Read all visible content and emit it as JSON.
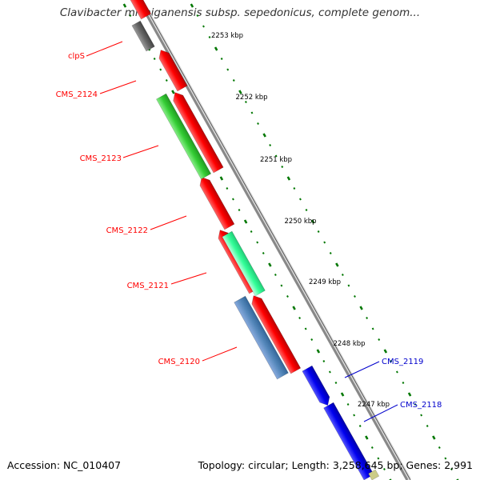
{
  "title": "Clavibacter michiganensis subsp. sepedonicus, complete genom...",
  "footer": {
    "accession": "Accession: NC_010407",
    "summary": "Topology: circular; Length: 3,258,645 bp; Genes: 2,991"
  },
  "ticks": [
    "2253 kbp",
    "2252 kbp",
    "2251 kbp",
    "2250 kbp",
    "2249 kbp",
    "2248 kbp",
    "2247 kbp"
  ],
  "genes_left": [
    {
      "name": "clpS"
    },
    {
      "name": "CMS_2124"
    },
    {
      "name": "CMS_2123"
    },
    {
      "name": "CMS_2122"
    },
    {
      "name": "CMS_2121"
    },
    {
      "name": "CMS_2120"
    }
  ],
  "genes_right": [
    {
      "name": "CMS_2119"
    },
    {
      "name": "CMS_2118"
    }
  ],
  "colors": {
    "left_label": "#ff0000",
    "right_label": "#0000cc",
    "reverse_gene": "#ff0000",
    "cds_green": "#33cc33",
    "cds_mint": "#33ff99",
    "cds_steel": "#5588bb",
    "cds_grey": "#666666",
    "forward_gene": "#0000ee",
    "backbone": "#888888",
    "tick_dots": "#007700"
  }
}
